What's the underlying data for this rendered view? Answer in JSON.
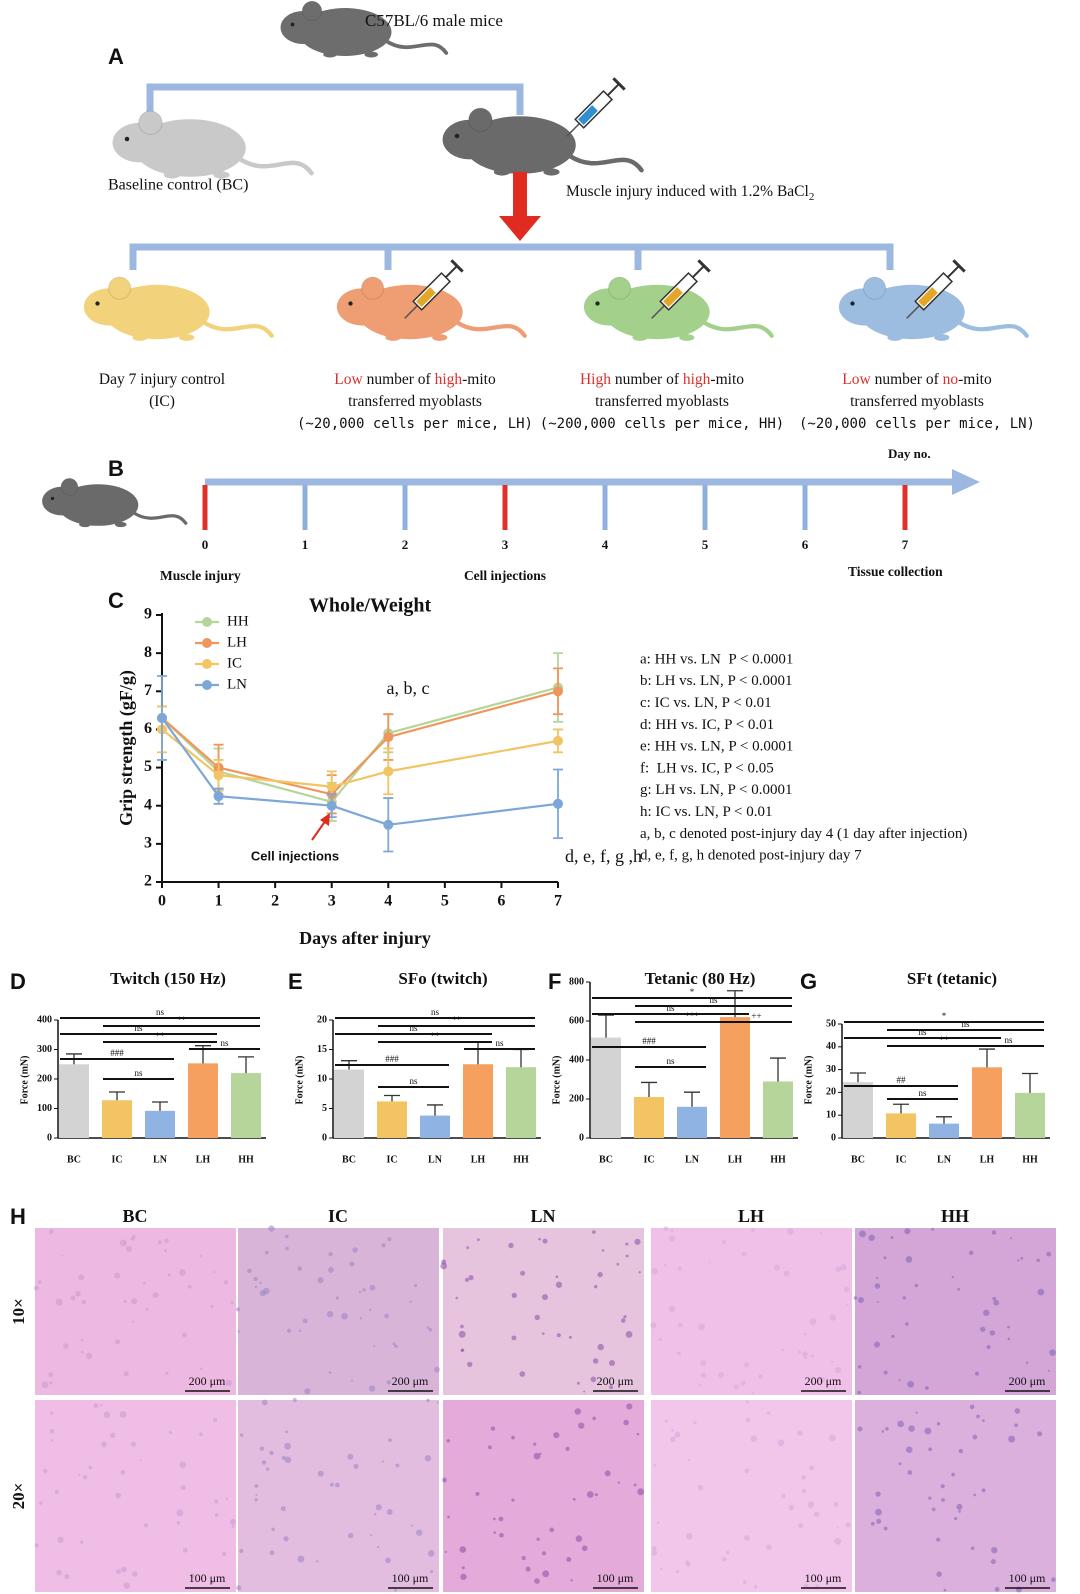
{
  "panel_labels": [
    "A",
    "B",
    "C",
    "D",
    "E",
    "F",
    "G",
    "H"
  ],
  "panel_a": {
    "strain": "C57BL/6 male mice",
    "baseline": "Baseline control (BC)",
    "injury": "Muscle injury induced with 1.2% BaCl",
    "injury_subscript": "2",
    "groups": [
      {
        "lines": [
          [
            {
              "text": "Day 7 injury control"
            }
          ],
          [
            {
              "text": "(IC)"
            }
          ]
        ]
      },
      {
        "lines": [
          [
            {
              "text": "Low",
              "color": "#d9302c"
            },
            {
              "text": " number of "
            },
            {
              "text": "high",
              "color": "#d9302c"
            },
            {
              "text": "-mito"
            }
          ],
          [
            {
              "text": "transferred myoblasts"
            }
          ],
          [
            {
              "text": "(~20,000 cells per mice, LH)"
            }
          ]
        ]
      },
      {
        "lines": [
          [
            {
              "text": "High",
              "color": "#d9302c"
            },
            {
              "text": " number of "
            },
            {
              "text": "high",
              "color": "#d9302c"
            },
            {
              "text": "-mito"
            }
          ],
          [
            {
              "text": "transferred myoblasts"
            }
          ],
          [
            {
              "text": "(~200,000 cells per mice, HH)"
            }
          ]
        ]
      },
      {
        "lines": [
          [
            {
              "text": "Low",
              "color": "#d9302c"
            },
            {
              "text": " number of "
            },
            {
              "text": "no",
              "color": "#d9302c"
            },
            {
              "text": "-mito"
            }
          ],
          [
            {
              "text": "transferred myoblasts"
            }
          ],
          [
            {
              "text": "(~20,000 cells per mice, LN)"
            }
          ]
        ]
      }
    ]
  },
  "panel_b": {
    "day_label": "Day no.",
    "days": [
      0,
      1,
      2,
      3,
      4,
      5,
      6,
      7
    ],
    "day_colors": [
      "#e0302a",
      "#8fb0dc",
      "#8fb0dc",
      "#e0302a",
      "#8fb0dc",
      "#8fb0dc",
      "#8fb0dc",
      "#e0302a"
    ],
    "events": [
      "Muscle injury",
      "Cell injections",
      "Tissue collection"
    ]
  },
  "chart_data": [
    {
      "type": "line",
      "title": "Whole/Weight",
      "x_label": "Days after injury",
      "y_label": "Grip strength (gF/g)",
      "x": [
        0,
        1,
        3,
        4,
        7
      ],
      "xlim": [
        0,
        7
      ],
      "xticks": [
        0,
        1,
        2,
        3,
        4,
        5,
        6,
        7
      ],
      "ylim": [
        2,
        9
      ],
      "yticks": [
        2,
        3,
        4,
        5,
        6,
        7,
        8,
        9
      ],
      "legend": "top-left",
      "series": [
        {
          "name": "HH",
          "color": "#b5d59b",
          "values": [
            6.3,
            4.9,
            4.1,
            5.9,
            7.1
          ],
          "errors": [
            0.3,
            0.6,
            0.5,
            0.5,
            0.9
          ]
        },
        {
          "name": "LH",
          "color": "#f0965b",
          "values": [
            6.3,
            5.0,
            4.3,
            5.8,
            7.0
          ],
          "errors": [
            0.3,
            0.6,
            0.5,
            0.6,
            0.6
          ]
        },
        {
          "name": "IC",
          "color": "#f2c464",
          "values": [
            6.0,
            4.8,
            4.5,
            4.9,
            5.7
          ],
          "errors": [
            0.6,
            0.4,
            0.4,
            0.6,
            0.3
          ]
        },
        {
          "name": "LN",
          "color": "#7ca7d8",
          "values": [
            6.3,
            4.25,
            4.0,
            3.5,
            4.05
          ],
          "errors": [
            1.1,
            0.2,
            0.3,
            0.7,
            0.9
          ]
        }
      ],
      "annotations": [
        "a, b, c",
        "d, e, f, g ,h",
        "Cell injections"
      ],
      "notes": [
        "a: HH vs. LN  P < 0.0001",
        "b: LH vs. LN, P < 0.0001",
        "c: IC vs. LN, P < 0.01",
        "d: HH vs. IC, P < 0.01",
        "e: HH vs. LN, P < 0.0001",
        "f:  LH vs. IC, P < 0.05",
        "g: LH vs. LN, P < 0.0001",
        "h: IC vs. LN, P < 0.01",
        "a, b, c denoted post-injury day 4 (1 day after injection)",
        "d, e, f, g, h denoted post-injury day 7"
      ]
    },
    {
      "type": "bar",
      "title": "Twitch (150 Hz)",
      "y_label": "Force (mN)",
      "categories": [
        "BC",
        "IC",
        "LN",
        "LH",
        "HH"
      ],
      "colors": [
        "#d3d3d3",
        "#f2c464",
        "#8fb4e3",
        "#f5a05e",
        "#b5d59b"
      ],
      "values": [
        250,
        128,
        92,
        253,
        220
      ],
      "errors": [
        35,
        28,
        30,
        60,
        55
      ],
      "ylim": [
        0,
        400
      ],
      "yticks": [
        0,
        100,
        200,
        300,
        400
      ],
      "significance": [
        "ns",
        "**",
        "ns",
        "**",
        "ns",
        "###",
        "ns"
      ]
    },
    {
      "type": "bar",
      "title": "SFo (twitch)",
      "y_label": "Force (mN)",
      "categories": [
        "BC",
        "IC",
        "LN",
        "LH",
        "HH"
      ],
      "colors": [
        "#d3d3d3",
        "#f2c464",
        "#8fb4e3",
        "#f5a05e",
        "#b5d59b"
      ],
      "values": [
        11.6,
        6.2,
        3.8,
        12.5,
        12.0
      ],
      "errors": [
        1.5,
        1.0,
        1.8,
        3.8,
        3.0
      ],
      "ylim": [
        0,
        20
      ],
      "yticks": [
        0,
        5,
        10,
        15,
        20
      ],
      "significance": [
        "ns",
        "**",
        "ns",
        "**",
        "ns",
        "###",
        "ns"
      ]
    },
    {
      "type": "bar",
      "title": "Tetanic (80 Hz)",
      "y_label": "Force (mN)",
      "categories": [
        "BC",
        "IC",
        "LN",
        "LH",
        "HH"
      ],
      "colors": [
        "#d3d3d3",
        "#f2c464",
        "#8fb4e3",
        "#f5a05e",
        "#b5d59b"
      ],
      "values": [
        515,
        210,
        160,
        620,
        290
      ],
      "errors": [
        115,
        75,
        75,
        135,
        120
      ],
      "ylim": [
        0,
        800
      ],
      "yticks": [
        0,
        200,
        400,
        600,
        800
      ],
      "significance": [
        "*",
        "ns",
        "ns",
        "***",
        "++",
        "###",
        "ns"
      ]
    },
    {
      "type": "bar",
      "title": "SFt (tetanic)",
      "y_label": "Force (mN)",
      "categories": [
        "BC",
        "IC",
        "LN",
        "LH",
        "HH"
      ],
      "colors": [
        "#d3d3d3",
        "#f2c464",
        "#8fb4e3",
        "#f5a05e",
        "#b5d59b"
      ],
      "values": [
        24.5,
        10.8,
        6.3,
        31.0,
        19.8
      ],
      "errors": [
        4,
        4,
        3,
        8,
        8.5
      ],
      "ylim": [
        0,
        50
      ],
      "yticks": [
        0,
        10,
        20,
        30,
        40,
        50
      ],
      "significance": [
        "*",
        "ns",
        "ns",
        "**",
        "ns",
        "##",
        "ns"
      ]
    }
  ],
  "panel_h": {
    "columns": [
      "BC",
      "IC",
      "LN",
      "LH",
      "HH"
    ],
    "rows": [
      "10×",
      "20×"
    ],
    "scale_bars": [
      "200 μm",
      "100 μm"
    ]
  }
}
